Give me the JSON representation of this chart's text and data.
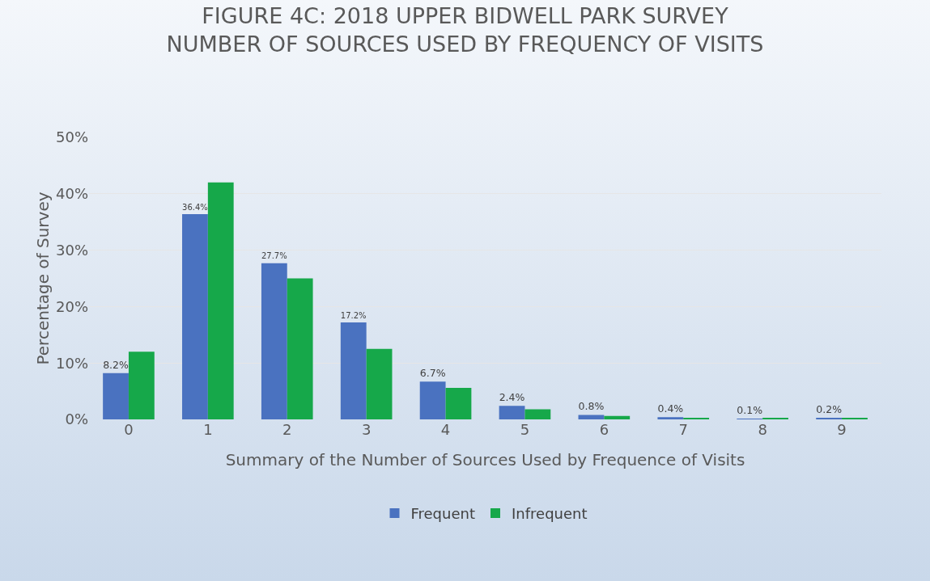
{
  "chart_data": {
    "type": "bar",
    "title": "FIGURE 4C: 2018 UPPER BIDWELL PARK SURVEY\nNUMBER OF SOURCES USED BY FREQUENCY OF VISITS",
    "xlabel": "Summary of the Number of Sources Used by Frequence of Visits",
    "ylabel": "Percentage of Survey",
    "categories": [
      "0",
      "1",
      "2",
      "3",
      "4",
      "5",
      "6",
      "7",
      "8",
      "9"
    ],
    "series": [
      {
        "name": "Frequent",
        "color": "#4a72c0",
        "values": [
          8.2,
          36.4,
          27.7,
          17.2,
          6.7,
          2.4,
          0.8,
          0.4,
          0.1,
          0.2
        ],
        "value_labels": [
          "8.2%",
          "36.4%",
          "27.7%",
          "17.2%",
          "6.7%",
          "2.4%",
          "0.8%",
          "0.4%",
          "0.1%",
          "0.2%"
        ]
      },
      {
        "name": "Infrequent",
        "color": "#16a84a",
        "values": [
          12,
          42,
          25,
          12.5,
          5.6,
          1.8,
          0.6,
          0.3,
          0.2,
          0.2
        ]
      }
    ],
    "ylim": [
      0,
      50
    ],
    "yticks": [
      {
        "value": 0,
        "label": "0%"
      },
      {
        "value": 10,
        "label": "10%"
      },
      {
        "value": 20,
        "label": "20%"
      },
      {
        "value": 30,
        "label": "30%"
      },
      {
        "value": 40,
        "label": "40%"
      },
      {
        "value": 50,
        "label": "50%"
      }
    ],
    "grid": "y",
    "legend": "bottom"
  }
}
